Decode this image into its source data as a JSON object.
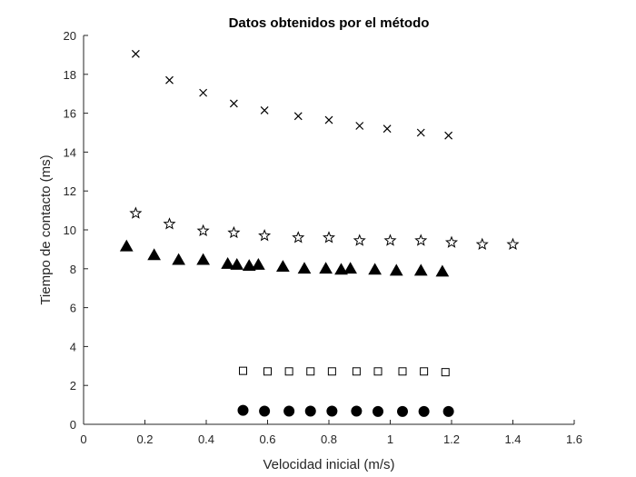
{
  "chart_data": {
    "type": "scatter",
    "title": "Datos obtenidos por el método",
    "xlabel": "Velocidad inicial (m/s)",
    "ylabel": "Tiempo de contacto (ms)",
    "xlim": [
      0,
      1.6
    ],
    "ylim": [
      0,
      20
    ],
    "xticks": [
      0,
      0.2,
      0.4,
      0.6,
      0.8,
      1,
      1.2,
      1.4,
      1.6
    ],
    "xtick_labels": [
      "0",
      "0.2",
      "0.4",
      "0.6",
      "0.8",
      "1",
      "1.2",
      "1.4",
      "1.6"
    ],
    "yticks": [
      0,
      2,
      4,
      6,
      8,
      10,
      12,
      14,
      16,
      18,
      20
    ],
    "ytick_labels": [
      "0",
      "2",
      "4",
      "6",
      "8",
      "10",
      "12",
      "14",
      "16",
      "18",
      "20"
    ],
    "grid": false,
    "color": "#000000",
    "series": [
      {
        "marker": "x",
        "x": [
          0.17,
          0.28,
          0.39,
          0.49,
          0.59,
          0.7,
          0.8,
          0.9,
          0.99,
          1.1,
          1.19
        ],
        "y": [
          19.05,
          17.7,
          17.05,
          16.5,
          16.15,
          15.85,
          15.65,
          15.35,
          15.2,
          15.0,
          14.85
        ]
      },
      {
        "marker": "star",
        "x": [
          0.17,
          0.28,
          0.39,
          0.49,
          0.59,
          0.7,
          0.8,
          0.9,
          1.0,
          1.1,
          1.2,
          1.3,
          1.4
        ],
        "y": [
          10.85,
          10.3,
          9.95,
          9.85,
          9.7,
          9.6,
          9.6,
          9.45,
          9.45,
          9.45,
          9.35,
          9.25,
          9.25
        ]
      },
      {
        "marker": "triangle",
        "x": [
          0.14,
          0.23,
          0.31,
          0.39,
          0.47,
          0.5,
          0.54,
          0.57,
          0.65,
          0.72,
          0.79,
          0.84,
          0.87,
          0.95,
          1.02,
          1.1,
          1.17
        ],
        "y": [
          9.15,
          8.7,
          8.45,
          8.45,
          8.25,
          8.2,
          8.15,
          8.2,
          8.1,
          8.0,
          8.0,
          7.95,
          8.0,
          7.95,
          7.9,
          7.9,
          7.85
        ]
      },
      {
        "marker": "square",
        "x": [
          0.52,
          0.6,
          0.67,
          0.74,
          0.81,
          0.89,
          0.96,
          1.04,
          1.11,
          1.18
        ],
        "y": [
          2.75,
          2.72,
          2.72,
          2.72,
          2.72,
          2.72,
          2.72,
          2.72,
          2.72,
          2.68
        ]
      },
      {
        "marker": "circle",
        "x": [
          0.52,
          0.59,
          0.67,
          0.74,
          0.81,
          0.89,
          0.96,
          1.04,
          1.11,
          1.19
        ],
        "y": [
          0.72,
          0.68,
          0.68,
          0.68,
          0.68,
          0.68,
          0.66,
          0.66,
          0.66,
          0.66
        ]
      }
    ]
  }
}
